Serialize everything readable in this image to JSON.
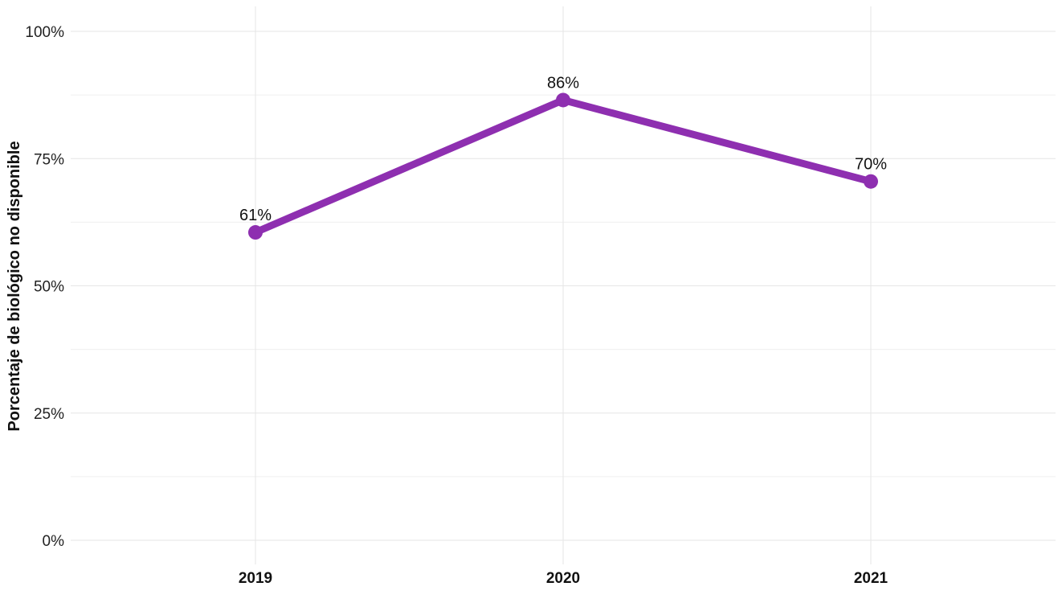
{
  "chart_data": {
    "type": "line",
    "title": "",
    "xlabel": "",
    "ylabel": "Porcentaje de biológico no disponible",
    "categories": [
      "2019",
      "2020",
      "2021"
    ],
    "series": [
      {
        "values": [
          0.605,
          0.865,
          0.705
        ],
        "labels": [
          "61%",
          "86%",
          "70%"
        ],
        "color": "#8e2fb0"
      }
    ],
    "ylim": [
      0,
      1
    ],
    "y_ticks": [
      {
        "value": 0,
        "label": "0%"
      },
      {
        "value": 0.25,
        "label": "25%"
      },
      {
        "value": 0.5,
        "label": "50%"
      },
      {
        "value": 0.75,
        "label": "75%"
      },
      {
        "value": 1,
        "label": "100%"
      }
    ],
    "grid": true,
    "legend": "none"
  }
}
